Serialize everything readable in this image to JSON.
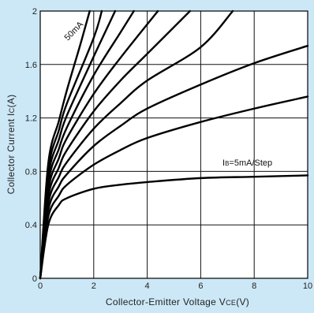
{
  "chart_data": {
    "type": "line",
    "title": "",
    "xlabel": {
      "main": "Collector-Emitter Voltage V",
      "sub": "CE",
      "unit": "(V)"
    },
    "ylabel": {
      "main": "Collector Current I",
      "sub": "C",
      "unit": "(A)"
    },
    "xlim": [
      0,
      10
    ],
    "ylim": [
      0,
      2
    ],
    "x_ticks": [
      "0",
      "2",
      "4",
      "6",
      "8",
      "10"
    ],
    "y_ticks": [
      "0",
      "0.4",
      "0.8",
      "1.2",
      "1.6",
      "2"
    ],
    "grid": true,
    "annotations": [
      {
        "text": "50mA",
        "anchor": "top-left of highest curve"
      },
      {
        "prefix": "I",
        "sub": "B",
        "text": "=5mA/Step",
        "anchor": "above lowest curve at right"
      }
    ],
    "series": [
      {
        "points": [
          [
            0,
            0
          ],
          [
            0.3,
            0.4
          ],
          [
            0.7,
            0.55
          ],
          [
            1,
            0.6
          ],
          [
            2,
            0.67
          ],
          [
            3,
            0.7
          ],
          [
            4,
            0.72
          ],
          [
            6,
            0.75
          ],
          [
            8,
            0.76
          ],
          [
            10,
            0.77
          ]
        ]
      },
      {
        "points": [
          [
            0,
            0
          ],
          [
            0.3,
            0.46
          ],
          [
            0.7,
            0.62
          ],
          [
            1,
            0.7
          ],
          [
            2,
            0.85
          ],
          [
            3,
            0.96
          ],
          [
            4,
            1.05
          ],
          [
            6,
            1.17
          ],
          [
            8,
            1.27
          ],
          [
            10,
            1.36
          ]
        ]
      },
      {
        "points": [
          [
            0,
            0
          ],
          [
            0.3,
            0.51
          ],
          [
            0.7,
            0.69
          ],
          [
            1,
            0.78
          ],
          [
            2,
            0.99
          ],
          [
            3,
            1.14
          ],
          [
            4,
            1.27
          ],
          [
            6,
            1.45
          ],
          [
            8,
            1.61
          ],
          [
            10,
            1.74
          ]
        ]
      },
      {
        "points": [
          [
            0,
            0
          ],
          [
            0.3,
            0.56
          ],
          [
            0.7,
            0.76
          ],
          [
            1,
            0.87
          ],
          [
            2,
            1.12
          ],
          [
            3,
            1.31
          ],
          [
            4,
            1.48
          ],
          [
            6,
            1.73
          ],
          [
            7.2,
            2.0
          ]
        ]
      },
      {
        "points": [
          [
            0,
            0
          ],
          [
            0.3,
            0.61
          ],
          [
            0.7,
            0.83
          ],
          [
            1,
            0.96
          ],
          [
            2,
            1.25
          ],
          [
            3,
            1.48
          ],
          [
            4,
            1.68
          ],
          [
            5.6,
            2.0
          ]
        ]
      },
      {
        "points": [
          [
            0,
            0
          ],
          [
            0.3,
            0.66
          ],
          [
            0.7,
            0.9
          ],
          [
            1,
            1.05
          ],
          [
            2,
            1.38
          ],
          [
            3,
            1.65
          ],
          [
            4.4,
            2.0
          ]
        ]
      },
      {
        "points": [
          [
            0,
            0
          ],
          [
            0.3,
            0.71
          ],
          [
            0.7,
            0.97
          ],
          [
            1,
            1.13
          ],
          [
            2,
            1.52
          ],
          [
            3,
            1.84
          ],
          [
            3.5,
            2.0
          ]
        ]
      },
      {
        "points": [
          [
            0,
            0
          ],
          [
            0.3,
            0.76
          ],
          [
            0.7,
            1.04
          ],
          [
            1,
            1.22
          ],
          [
            2,
            1.66
          ],
          [
            2.8,
            2.0
          ]
        ]
      },
      {
        "points": [
          [
            0,
            0
          ],
          [
            0.3,
            0.81
          ],
          [
            0.7,
            1.11
          ],
          [
            1,
            1.31
          ],
          [
            2,
            1.8
          ],
          [
            2.3,
            2.0
          ]
        ]
      },
      {
        "points": [
          [
            0,
            0
          ],
          [
            0.3,
            0.86
          ],
          [
            0.7,
            1.18
          ],
          [
            1,
            1.41
          ],
          [
            1.5,
            1.75
          ],
          [
            1.85,
            2.0
          ]
        ]
      }
    ]
  }
}
